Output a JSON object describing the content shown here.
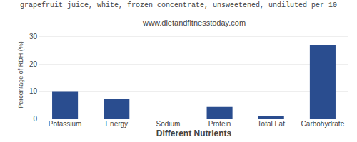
{
  "chart_data": {
    "type": "bar",
    "title": "grapefruit juice, white, frozen concentrate, unsweetened, undiluted per 10",
    "subtitle": "www.dietandfitnesstoday.com",
    "categories": [
      "Potassium",
      "Energy",
      "Sodium",
      "Protein",
      "Total Fat",
      "Carbohydrate"
    ],
    "values": [
      10.0,
      7.0,
      0.0,
      4.5,
      1.0,
      27.0
    ],
    "color": "#2a4d8f",
    "xlabel": "Different Nutrients",
    "ylabel": "Percentage of RDH (%)",
    "ylim": [
      0,
      32
    ],
    "yticks": [
      0,
      10,
      20,
      30
    ],
    "grid": true
  }
}
